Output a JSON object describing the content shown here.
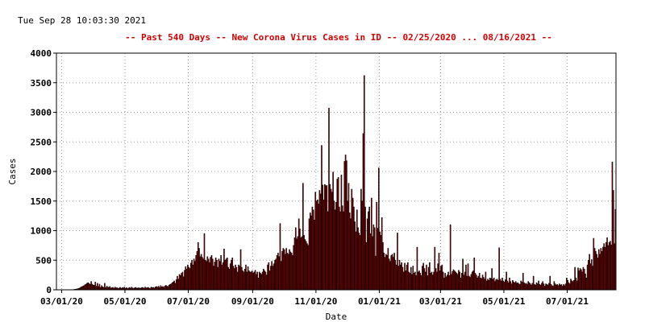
{
  "timestamp": "Tue Sep 28 10:03:30 2021",
  "title": "--  Past 540 Days  --  New Corona Virus Cases in ID  -- 02/25/2020 ... 08/16/2021  --",
  "colors": {
    "bar_fill": "#cc0000",
    "bar_edge": "#000000",
    "title": "#d40000",
    "grid": "#9a9a9a"
  },
  "chart_data": {
    "type": "bar",
    "xlabel": "Date",
    "ylabel": "Cases",
    "xrange": [
      "2020-02-25",
      "2021-08-16"
    ],
    "ylim": [
      0,
      4000
    ],
    "yticks": [
      0,
      500,
      1000,
      1500,
      2000,
      2500,
      3000,
      3500,
      4000
    ],
    "xticks": [
      {
        "date": "2020-03-01",
        "label": "03/01/20"
      },
      {
        "date": "2020-05-01",
        "label": "05/01/20"
      },
      {
        "date": "2020-07-01",
        "label": "07/01/20"
      },
      {
        "date": "2020-09-01",
        "label": "09/01/20"
      },
      {
        "date": "2020-11-01",
        "label": "11/01/20"
      },
      {
        "date": "2021-01-01",
        "label": "01/01/21"
      },
      {
        "date": "2021-03-01",
        "label": "03/01/21"
      },
      {
        "date": "2021-05-01",
        "label": "05/01/21"
      },
      {
        "date": "2021-07-01",
        "label": "07/01/21"
      }
    ],
    "grid": true,
    "series": [
      {
        "monthly_daily_values": [
          {
            "month": "2020-02",
            "values": [
              0,
              0,
              0,
              0,
              0
            ]
          },
          {
            "month": "2020-03",
            "values": [
              0,
              0,
              0,
              0,
              0,
              0,
              0,
              0,
              0,
              0,
              3,
              4,
              8,
              10,
              14,
              18,
              25,
              30,
              45,
              52,
              60,
              70,
              85,
              95,
              110,
              120,
              105,
              90,
              140,
              95,
              80
            ]
          },
          {
            "month": "2020-04",
            "values": [
              75,
              130,
              60,
              110,
              55,
              95,
              40,
              70,
              50,
              40,
              110,
              35,
              60,
              45,
              40,
              55,
              30,
              35,
              40,
              25,
              45,
              30,
              35,
              20,
              30,
              40,
              25,
              35,
              30,
              45
            ]
          },
          {
            "month": "2020-05",
            "values": [
              25,
              35,
              20,
              30,
              40,
              25,
              45,
              30,
              20,
              35,
              40,
              25,
              30,
              35,
              25,
              30,
              40,
              35,
              25,
              45,
              30,
              35,
              40,
              25,
              30,
              45,
              35,
              40,
              30,
              50,
              55
            ]
          },
          {
            "month": "2020-06",
            "values": [
              45,
              60,
              35,
              70,
              50,
              55,
              40,
              65,
              75,
              60,
              55,
              80,
              90,
              100,
              120,
              130,
              150,
              110,
              170,
              230,
              180,
              260,
              240,
              280,
              300,
              220,
              330,
              390,
              350,
              420
            ]
          },
          {
            "month": "2020-07",
            "values": [
              380,
              360,
              450,
              500,
              420,
              520,
              480,
              580,
              650,
              800,
              700,
              560,
              600,
              550,
              520,
              950,
              500,
              480,
              560,
              520,
              460,
              550,
              580,
              520,
              400,
              470,
              540,
              500,
              380,
              520,
              480
            ]
          },
          {
            "month": "2020-08",
            "values": [
              580,
              420,
              460,
              690,
              500,
              520,
              540,
              380,
              350,
              440,
              500,
              540,
              400,
              360,
              420,
              380,
              300,
              420,
              400,
              680,
              380,
              320,
              300,
              350,
              420,
              300,
              390,
              320,
              300,
              300,
              320
            ]
          },
          {
            "month": "2020-09",
            "values": [
              280,
              300,
              330,
              260,
              300,
              200,
              300,
              280,
              260,
              300,
              350,
              320,
              300,
              250,
              420,
              460,
              320,
              400,
              480,
              400,
              440,
              500,
              520,
              580,
              620,
              560,
              1120,
              480,
              650,
              700
            ]
          },
          {
            "month": "2020-10",
            "values": [
              680,
              600,
              700,
              620,
              600,
              680,
              640,
              620,
              580,
              750,
              880,
              1050,
              860,
              900,
              1200,
              1030,
              880,
              900,
              1800,
              920,
              850,
              820,
              780,
              750,
              1200,
              1300,
              1250,
              1400,
              1350,
              1180,
              1650
            ]
          },
          {
            "month": "2020-11",
            "values": [
              1500,
              1520,
              1450,
              1680,
              1620,
              2440,
              1770,
              1520,
              1780,
              1760,
              1760,
              1320,
              3070,
              1780,
              1700,
              1650,
              1990,
              1500,
              1350,
              1480,
              1870,
              1900,
              1400,
              1320,
              1940,
              1420,
              1320,
              2170,
              2280,
              2180
            ]
          },
          {
            "month": "2020-12",
            "values": [
              1500,
              1800,
              1300,
              1200,
              1700,
              1550,
              1400,
              1150,
              980,
              1350,
              1050,
              960,
              920,
              1700,
              1500,
              2640,
              3620,
              1400,
              800,
              1200,
              1320,
              1400,
              950,
              1550,
              900,
              1100,
              1050,
              570,
              1480,
              1040,
              2060
            ]
          },
          {
            "month": "2021-01",
            "values": [
              980,
              920,
              1220,
              800,
              620,
              550,
              600,
              580,
              700,
              520,
              480,
              580,
              600,
              550,
              620,
              500,
              420,
              960,
              400,
              500,
              420,
              460,
              380,
              300,
              450,
              320,
              420,
              460,
              300,
              280,
              380
            ]
          },
          {
            "month": "2021-02",
            "values": [
              260,
              400,
              280,
              300,
              240,
              720,
              300,
              320,
              280,
              240,
              400,
              450,
              360,
              300,
              420,
              240,
              380,
              460,
              280,
              300,
              250,
              300,
              720,
              360,
              300,
              440,
              620,
              320,
              400,
              420
            ]
          },
          {
            "month": "2021-03",
            "values": [
              380,
              300,
              300,
              200,
              280,
              220,
              250,
              300,
              240,
              1100,
              260,
              310,
              340,
              320,
              300,
              280,
              260,
              330,
              300,
              200,
              280,
              520,
              250,
              300,
              420,
              230,
              440,
              230,
              210,
              260,
              300
            ]
          },
          {
            "month": "2021-04",
            "values": [
              320,
              540,
              280,
              250,
              200,
              230,
              280,
              200,
              190,
              250,
              210,
              180,
              300,
              150,
              180,
              160,
              200,
              190,
              360,
              180,
              200,
              140,
              170,
              180,
              160,
              710,
              180,
              150,
              200,
              150
            ]
          },
          {
            "month": "2021-05",
            "values": [
              130,
              170,
              300,
              150,
              120,
              200,
              140,
              100,
              160,
              130,
              120,
              140,
              110,
              120,
              100,
              90,
              150,
              130,
              280,
              120,
              100,
              110,
              90,
              140,
              120,
              100,
              80,
              110,
              230,
              90,
              80
            ]
          },
          {
            "month": "2021-06",
            "values": [
              120,
              100,
              150,
              90,
              80,
              110,
              140,
              100,
              60,
              100,
              90,
              80,
              110,
              230,
              90,
              70,
              60,
              140,
              100,
              80,
              90,
              70,
              100,
              80,
              90,
              60,
              90,
              70,
              100,
              200
            ]
          },
          {
            "month": "2021-07",
            "values": [
              160,
              120,
              100,
              180,
              150,
              140,
              160,
              380,
              200,
              150,
              370,
              320,
              360,
              340,
              300,
              380,
              350,
              270,
              200,
              420,
              500,
              600,
              440,
              510,
              400,
              870,
              700,
              650,
              600,
              540,
              680
            ]
          },
          {
            "month": "2021-08",
            "values": [
              600,
              700,
              650,
              720,
              780,
              720,
              800,
              880,
              750,
              800,
              820,
              760,
              2160,
              1680,
              780,
              1360
            ]
          }
        ]
      }
    ]
  }
}
